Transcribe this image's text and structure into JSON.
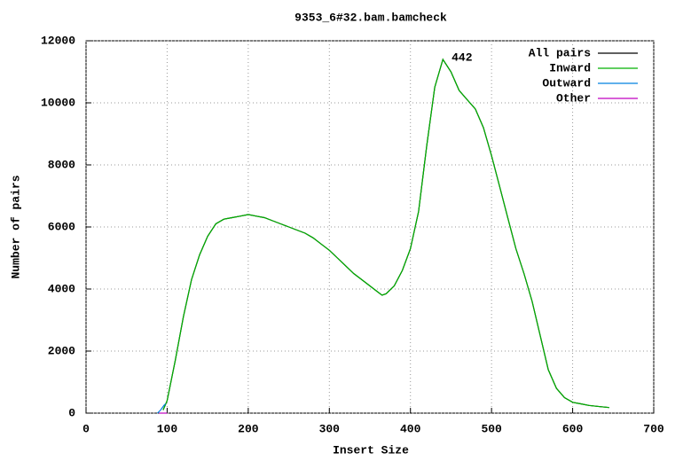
{
  "chart_data": {
    "type": "line",
    "title": "9353_6#32.bam.bamcheck",
    "x_label": "Insert Size",
    "y_label": "Number of pairs",
    "xlim": [
      0,
      700
    ],
    "xticks": [
      0,
      100,
      200,
      300,
      400,
      500,
      600,
      700
    ],
    "ylim": [
      0,
      12000
    ],
    "yticks": [
      0,
      2000,
      4000,
      6000,
      8000,
      10000,
      12000
    ],
    "grid": true,
    "legend": "top-right",
    "annotation": {
      "text": "442",
      "x": 442
    },
    "series": [
      {
        "name": "All pairs",
        "color": "#000000",
        "x": [
          95,
          100,
          110,
          120,
          130,
          140,
          150,
          160,
          170,
          180,
          190,
          200,
          210,
          220,
          230,
          240,
          250,
          260,
          270,
          280,
          290,
          300,
          310,
          320,
          330,
          340,
          350,
          360,
          365,
          370,
          380,
          390,
          400,
          410,
          420,
          430,
          440,
          450,
          460,
          470,
          480,
          490,
          500,
          510,
          520,
          530,
          540,
          550,
          560,
          570,
          580,
          590,
          600,
          610,
          620,
          630,
          645
        ],
        "values": [
          100,
          400,
          1700,
          3100,
          4300,
          5100,
          5700,
          6100,
          6250,
          6300,
          6350,
          6400,
          6350,
          6300,
          6200,
          6100,
          6000,
          5900,
          5800,
          5650,
          5450,
          5250,
          5000,
          4750,
          4500,
          4300,
          4100,
          3900,
          3800,
          3850,
          4100,
          4600,
          5300,
          6500,
          8600,
          10500,
          11400,
          11000,
          10400,
          10100,
          9800,
          9200,
          8300,
          7300,
          6300,
          5300,
          4500,
          3600,
          2500,
          1400,
          800,
          500,
          350,
          300,
          250,
          220,
          180
        ]
      },
      {
        "name": "Inward",
        "color": "#00b000",
        "x": [
          95,
          100,
          110,
          120,
          130,
          140,
          150,
          160,
          170,
          180,
          190,
          200,
          210,
          220,
          230,
          240,
          250,
          260,
          270,
          280,
          290,
          300,
          310,
          320,
          330,
          340,
          350,
          360,
          365,
          370,
          380,
          390,
          400,
          410,
          420,
          430,
          440,
          450,
          460,
          470,
          480,
          490,
          500,
          510,
          520,
          530,
          540,
          550,
          560,
          570,
          580,
          590,
          600,
          610,
          620,
          630,
          645
        ],
        "values": [
          100,
          400,
          1700,
          3100,
          4300,
          5100,
          5700,
          6100,
          6250,
          6300,
          6350,
          6400,
          6350,
          6300,
          6200,
          6100,
          6000,
          5900,
          5800,
          5650,
          5450,
          5250,
          5000,
          4750,
          4500,
          4300,
          4100,
          3900,
          3800,
          3850,
          4100,
          4600,
          5300,
          6500,
          8600,
          10500,
          11400,
          11000,
          10400,
          10100,
          9800,
          9200,
          8300,
          7300,
          6300,
          5300,
          4500,
          3600,
          2500,
          1400,
          800,
          500,
          350,
          300,
          250,
          220,
          180
        ]
      },
      {
        "name": "Outward",
        "color": "#0080e0",
        "x": [
          88,
          92,
          96,
          98
        ],
        "values": [
          0,
          100,
          250,
          300
        ]
      },
      {
        "name": "Other",
        "color": "#c000c0",
        "x": [
          90,
          95,
          100
        ],
        "values": [
          0,
          0,
          0
        ]
      }
    ]
  }
}
